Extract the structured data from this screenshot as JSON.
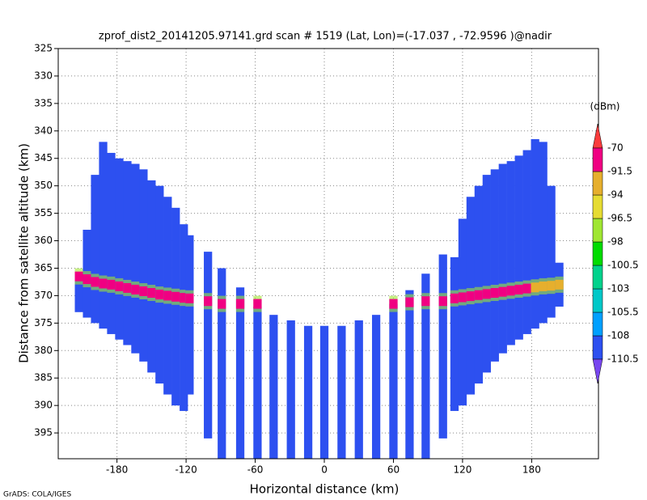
{
  "chart_data": {
    "type": "profile",
    "title": "zprof_dist2_20141205.97141.grd  scan # 1519  (Lat, Lon)=(-17.037 , -72.9596 )@nadir",
    "xlabel": "Horizontal distance (km)",
    "ylabel": "Distance from satellite altitude (km)",
    "credit": "GrADS: COLA/IGES",
    "xlim": [
      -231,
      238
    ],
    "ylim": [
      325,
      399.7
    ],
    "y_inverted": true,
    "xticks": [
      -180,
      -120,
      -60,
      0,
      60,
      120,
      180
    ],
    "yticks": [
      325,
      330,
      335,
      340,
      345,
      350,
      355,
      360,
      365,
      370,
      375,
      380,
      385,
      390,
      395
    ],
    "grid": true,
    "background_value": -109,
    "colorbar": {
      "unit": "(dBm)",
      "levels": [
        -110.5,
        -108,
        -105.5,
        -103,
        -100.5,
        -98,
        -96.5,
        -94,
        -91.5,
        -70
      ],
      "colors": [
        "#7846f0",
        "#2d50f0",
        "#00a0ff",
        "#00c8c8",
        "#00d28c",
        "#00dc00",
        "#a0e632",
        "#e6dc32",
        "#e6af2d",
        "#f00082",
        "#fa3c3c"
      ]
    },
    "columns": {
      "x": [
        -213,
        -206,
        -199,
        -192,
        -185,
        -178,
        -171,
        -164,
        -157,
        -150,
        -143,
        -136,
        -129,
        -122,
        -117,
        -101,
        -89,
        -73,
        -58,
        -44,
        -29,
        -14,
        0,
        15,
        30,
        45,
        60,
        74,
        88,
        103,
        113,
        120,
        127,
        134,
        141,
        148,
        155,
        162,
        169,
        176,
        183,
        190,
        197,
        204
      ],
      "top": [
        366,
        358,
        348,
        342,
        344,
        345,
        345.5,
        346,
        347,
        349,
        350,
        352,
        354,
        357,
        359,
        362,
        365,
        368.5,
        372,
        373.5,
        374.5,
        375.5,
        375.5,
        375.5,
        374.5,
        373.5,
        371.5,
        369,
        366,
        362.5,
        363,
        356,
        352,
        350,
        348,
        347,
        346,
        345.5,
        344.5,
        343.5,
        341.5,
        342,
        350,
        364
      ],
      "bottom": [
        373,
        374,
        375,
        376,
        377,
        378,
        379,
        380.5,
        382,
        384,
        386,
        388,
        390,
        391,
        388,
        396,
        399.7,
        399.7,
        399.7,
        399.7,
        399.7,
        399.7,
        399.7,
        399.7,
        399.7,
        399.7,
        399.7,
        399.7,
        399.7,
        396,
        391,
        390,
        388,
        386,
        384,
        382,
        380.5,
        379,
        378,
        377,
        376,
        375,
        374,
        372
      ],
      "band": [
        366.5,
        367,
        367.5,
        367.8,
        368,
        368.3,
        368.6,
        368.9,
        369.2,
        369.5,
        369.8,
        370,
        370.2,
        370.4,
        370.5,
        371,
        371.5,
        371.5,
        371.5,
        null,
        null,
        null,
        null,
        null,
        null,
        null,
        371.5,
        371.2,
        371,
        371,
        370.5,
        370.3,
        370.1,
        369.9,
        369.7,
        369.5,
        369.3,
        369.1,
        368.9,
        368.7,
        368.5,
        368.3,
        368.2,
        368
      ],
      "band_value": [
        -85,
        -85,
        -85,
        -85,
        -85,
        -85,
        -85,
        -85,
        -85,
        -85,
        -85,
        -85,
        -85,
        -85,
        -85,
        -85,
        -85,
        -85,
        -85,
        null,
        null,
        null,
        null,
        null,
        null,
        null,
        -85,
        -85,
        -85,
        -85,
        -85,
        -85,
        -85,
        -85,
        -85,
        -85,
        -85,
        -85,
        -85,
        -85,
        -93,
        -93,
        -93,
        -93
      ]
    }
  }
}
